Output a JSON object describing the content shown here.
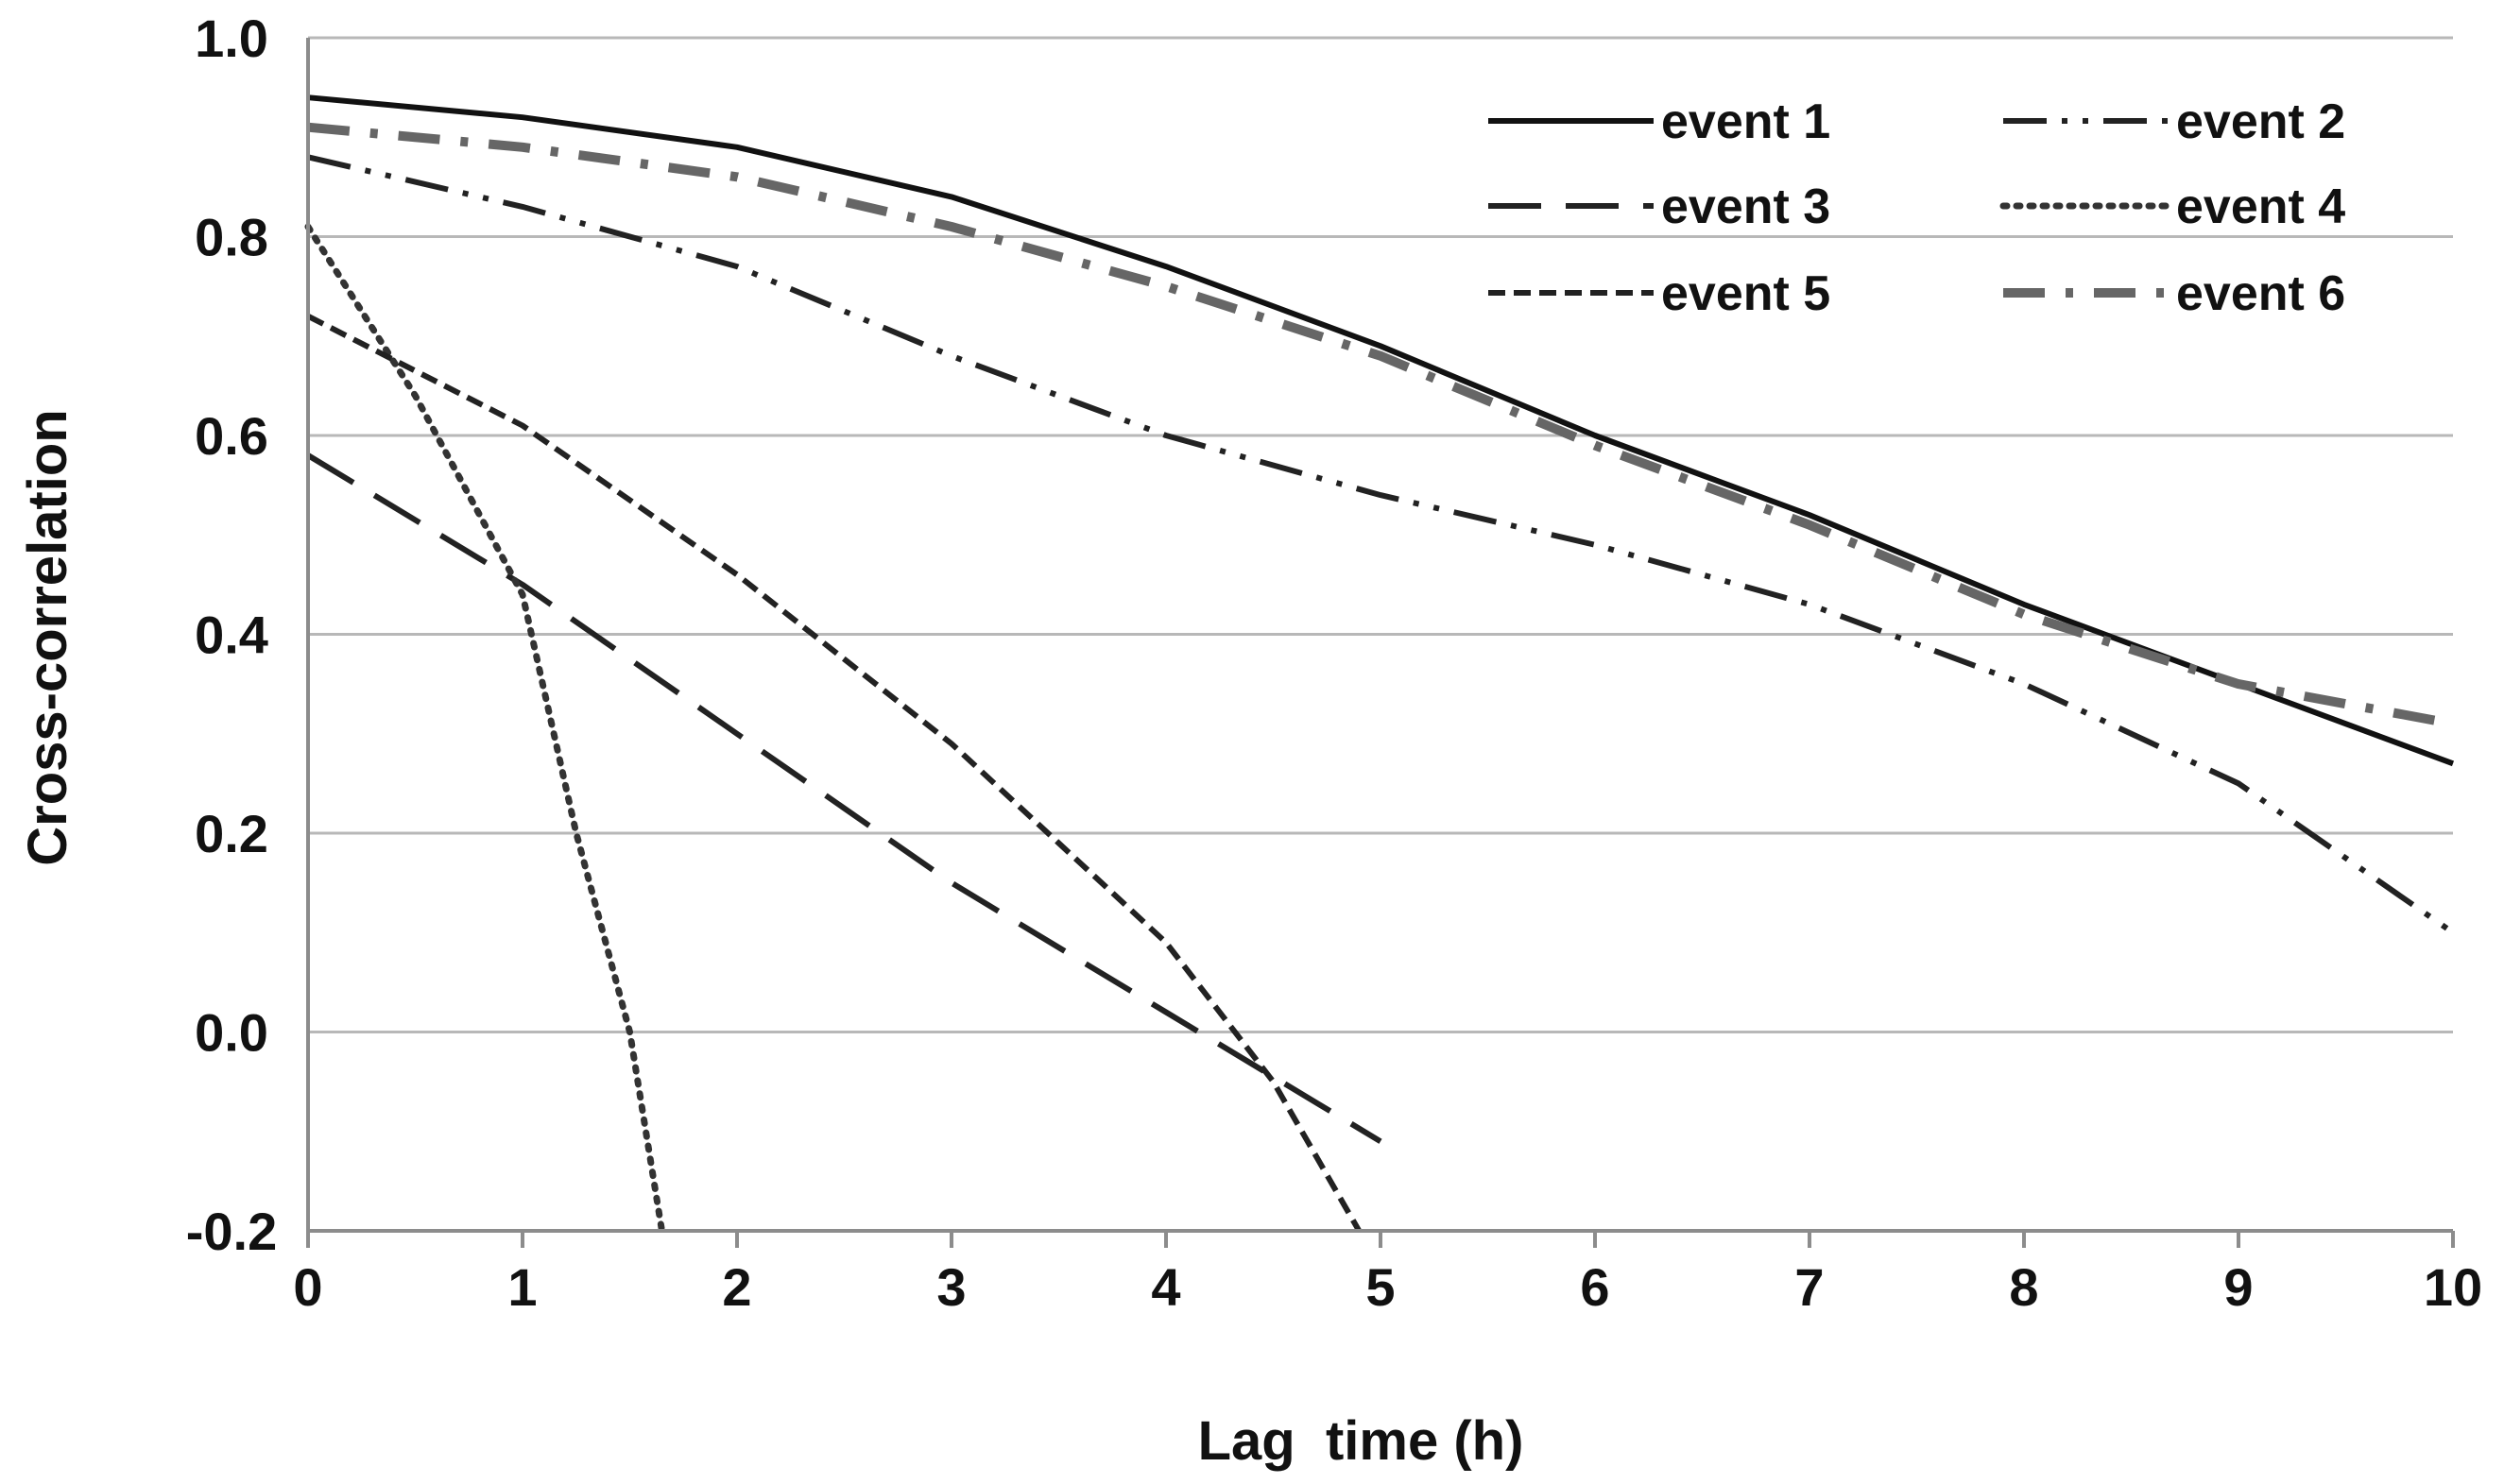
{
  "chart_data": {
    "type": "line",
    "title": "",
    "xlabel": "Lag  time (h)",
    "ylabel": "Cross-correlation",
    "xlim": [
      0,
      10
    ],
    "ylim": [
      -0.2,
      1.0
    ],
    "x_ticks": [
      "0",
      "1",
      "2",
      "3",
      "4",
      "5",
      "6",
      "7",
      "8",
      "9",
      "10"
    ],
    "y_ticks": [
      "1.0",
      "0.8",
      "0.6",
      "0.4",
      "0.2",
      "0.0",
      "-0.2"
    ],
    "grid": "horizontal",
    "legend_position": "top-right",
    "series": [
      {
        "name": "event 1",
        "style": "solid",
        "color": "#111111",
        "x": [
          0,
          1,
          2,
          3,
          4,
          5,
          6,
          7,
          8,
          9,
          10
        ],
        "y": [
          0.94,
          0.92,
          0.89,
          0.84,
          0.77,
          0.69,
          0.6,
          0.52,
          0.43,
          0.35,
          0.27
        ]
      },
      {
        "name": "event 2",
        "style": "dash-dot-dot",
        "color": "#222222",
        "x": [
          0,
          1,
          2,
          3,
          4,
          5,
          6,
          7,
          8,
          9,
          10
        ],
        "y": [
          0.88,
          0.83,
          0.77,
          0.68,
          0.6,
          0.54,
          0.49,
          0.43,
          0.35,
          0.25,
          0.1
        ]
      },
      {
        "name": "event 3",
        "style": "long-dash",
        "color": "#222222",
        "x": [
          0,
          1,
          2,
          3,
          4,
          5
        ],
        "y": [
          0.58,
          0.45,
          0.3,
          0.15,
          0.02,
          -0.11
        ]
      },
      {
        "name": "event 4",
        "style": "dotted",
        "color": "#333333",
        "x": [
          0,
          0.5,
          1,
          1.25,
          1.5,
          1.65
        ],
        "y": [
          0.81,
          0.64,
          0.44,
          0.2,
          0.0,
          -0.2
        ]
      },
      {
        "name": "event 5",
        "style": "short-dash",
        "color": "#222222",
        "x": [
          0,
          1,
          2,
          3,
          4,
          4.5,
          4.9
        ],
        "y": [
          0.72,
          0.61,
          0.46,
          0.29,
          0.09,
          -0.05,
          -0.2
        ]
      },
      {
        "name": "event 6",
        "style": "long-dash-dot",
        "color": "#666666",
        "x": [
          0,
          1,
          2,
          3,
          4,
          5,
          6,
          7,
          8,
          9,
          10
        ],
        "y": [
          0.91,
          0.89,
          0.86,
          0.81,
          0.75,
          0.68,
          0.59,
          0.51,
          0.42,
          0.35,
          0.31
        ]
      }
    ]
  }
}
